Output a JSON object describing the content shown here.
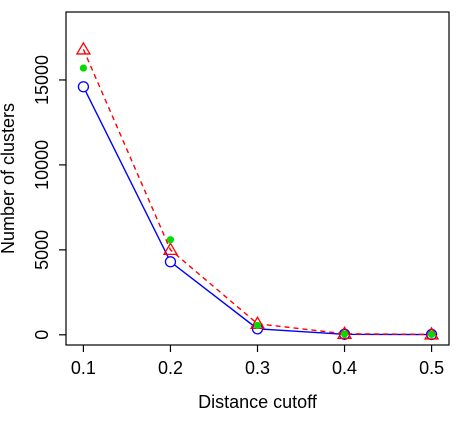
{
  "chart_data": {
    "type": "line",
    "title": "",
    "xlabel": "Distance cutoff",
    "ylabel": "Number of clusters",
    "x": [
      0.1,
      0.2,
      0.3,
      0.4,
      0.5
    ],
    "xticks": [
      "0.1",
      "0.2",
      "0.3",
      "0.4",
      "0.5"
    ],
    "yticks": [
      "0",
      "5000",
      "10000",
      "15000"
    ],
    "xlim": [
      0.08,
      0.52
    ],
    "ylim": [
      -600,
      19000
    ],
    "grid": false,
    "series": [
      {
        "marker": "circle-open",
        "line": "solid",
        "color": "#0000ff",
        "values": [
          14600,
          4300,
          350,
          30,
          15
        ]
      },
      {
        "marker": "triangle-open",
        "line": "dashed",
        "color": "#ff0000",
        "values": [
          16800,
          5000,
          650,
          60,
          25
        ]
      },
      {
        "marker": "dot",
        "line": "none",
        "color": "#00dd00",
        "values": [
          15700,
          5600,
          550,
          40,
          20
        ]
      }
    ]
  }
}
